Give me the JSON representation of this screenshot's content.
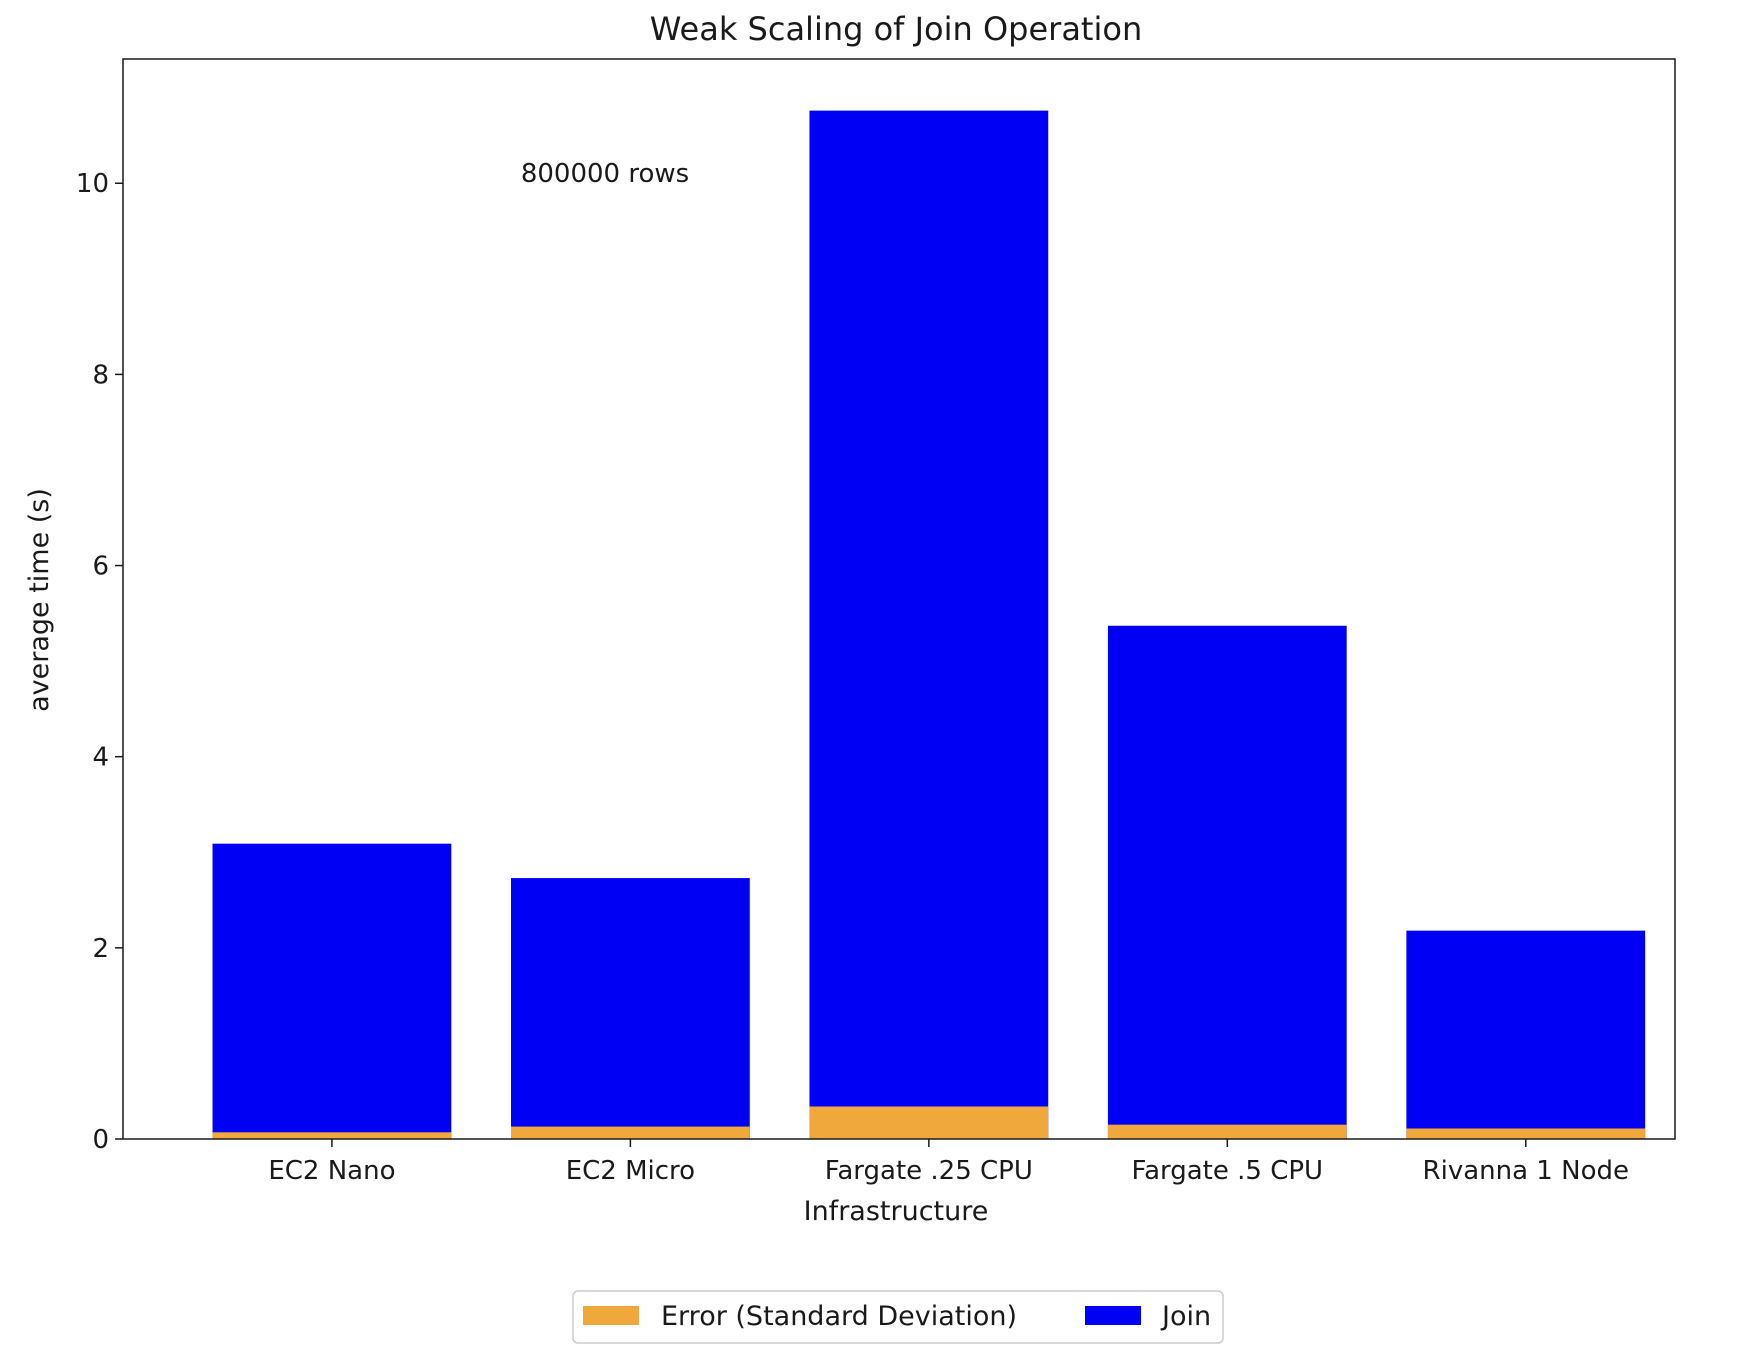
{
  "chart_data": {
    "type": "bar",
    "title": "Weak Scaling of Join Operation",
    "xlabel": "Infrastructure",
    "ylabel": "average time (s)",
    "annotation": "800000 rows",
    "categories": [
      "EC2 Nano",
      "EC2 Micro",
      "Fargate .25 CPU",
      "Fargate .5 CPU",
      "Rivanna 1 Node"
    ],
    "stacked": true,
    "series": [
      {
        "name": "Error (Standard Deviation)",
        "color": "#f0a83c",
        "values": [
          0.07,
          0.13,
          0.34,
          0.15,
          0.11
        ]
      },
      {
        "name": "Join",
        "color": "#0000f5",
        "values": [
          3.09,
          2.73,
          10.76,
          5.37,
          2.18
        ]
      }
    ],
    "ylim": [
      0,
      11.3
    ],
    "yticks": [
      0,
      2,
      4,
      6,
      8,
      10
    ],
    "grid": false,
    "legend": "bottom-center",
    "annotation_color": "#2a2af0"
  }
}
